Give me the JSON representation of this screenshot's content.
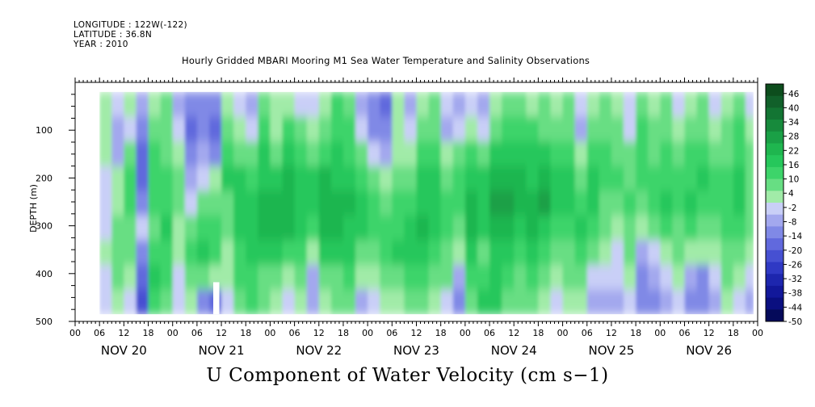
{
  "meta": {
    "longitude": "LONGITUDE : 122W(-122)",
    "latitude": "LATITUDE : 36.8N",
    "year": "YEAR : 2010"
  },
  "chart_data": {
    "type": "heatmap",
    "title": "Hourly Gridded MBARI Mooring M1 Sea Water Temperature and Salinity Observations",
    "variable_title": "U Component of Water Velocity (cm s−1)",
    "ylabel": "DEPTH (m)",
    "ylim": [
      500,
      0
    ],
    "y_inverted": true,
    "y_ticks": [
      100,
      200,
      300,
      400,
      500
    ],
    "x_range_hours": [
      0,
      168
    ],
    "x_days": [
      "NOV 20",
      "NOV 21",
      "NOV 22",
      "NOV 23",
      "NOV 24",
      "NOV 25",
      "NOV 26"
    ],
    "x_hour_labels": [
      "00",
      "06",
      "12",
      "18",
      "00",
      "06",
      "12",
      "18",
      "00",
      "06",
      "12",
      "18",
      "00",
      "06",
      "12",
      "18",
      "00",
      "06",
      "12",
      "18",
      "00",
      "06",
      "12",
      "18",
      "00",
      "06",
      "12",
      "18",
      "00"
    ],
    "data_extent": {
      "hour_start": 6,
      "hour_end": 167,
      "depth_top": 20,
      "depth_bottom": 485,
      "missing_block": {
        "hour_start": 34,
        "hour_end": 35.5,
        "depth_top": 418,
        "depth_bottom": 485
      }
    },
    "colorbar": {
      "min": -50,
      "max": 50,
      "labels": [
        "46",
        "40",
        "34",
        "28",
        "22",
        "16",
        "10",
        "4",
        "-2",
        "-8",
        "-14",
        "-20",
        "-26",
        "-32",
        "-38",
        "-44",
        "-50"
      ],
      "colors_high_to_low": [
        "#0d4d1d",
        "#11602a",
        "#137533",
        "#178a3c",
        "#1aa046",
        "#1fb64f",
        "#26c75b",
        "#3dd46a",
        "#67de83",
        "#a1eba8",
        "#c9cff7",
        "#a3a8ee",
        "#8089e6",
        "#6169dd",
        "#4650d2",
        "#2f39c4",
        "#1d26ae",
        "#12189a",
        "#0a0f80",
        "#050a5a"
      ]
    },
    "columns": [
      {
        "hour": 6,
        "v": [
          3,
          2,
          2,
          0,
          -2,
          0,
          2,
          -1,
          -3
        ]
      },
      {
        "hour": 9,
        "v": [
          -4,
          -8,
          -6,
          2,
          4,
          6,
          10,
          8,
          4
        ]
      },
      {
        "hour": 12,
        "v": [
          4,
          0,
          8,
          12,
          14,
          10,
          6,
          4,
          -2
        ]
      },
      {
        "hour": 15,
        "v": [
          -8,
          -14,
          -18,
          -16,
          -10,
          -4,
          -14,
          -16,
          -20
        ]
      },
      {
        "hour": 18,
        "v": [
          2,
          8,
          12,
          14,
          12,
          10,
          14,
          16,
          12
        ]
      },
      {
        "hour": 21,
        "v": [
          6,
          6,
          10,
          12,
          14,
          16,
          14,
          12,
          10
        ]
      },
      {
        "hour": 24,
        "v": [
          -6,
          -4,
          4,
          8,
          10,
          4,
          2,
          -2,
          -4
        ]
      },
      {
        "hour": 27,
        "v": [
          -12,
          -16,
          -12,
          -8,
          -4,
          8,
          14,
          10,
          4
        ]
      },
      {
        "hour": 30,
        "v": [
          -10,
          -14,
          -8,
          -4,
          6,
          12,
          16,
          10,
          -10
        ]
      },
      {
        "hour": 33,
        "v": [
          -14,
          -18,
          -12,
          2,
          8,
          14,
          12,
          4,
          -16
        ]
      },
      {
        "hour": 36,
        "v": [
          2,
          6,
          12,
          16,
          10,
          6,
          4,
          2,
          -4
        ]
      },
      {
        "hour": 39,
        "v": [
          -4,
          4,
          10,
          18,
          20,
          20,
          14,
          12,
          8
        ]
      },
      {
        "hour": 42,
        "v": [
          -8,
          0,
          6,
          14,
          16,
          20,
          18,
          14,
          12
        ]
      },
      {
        "hour": 45,
        "v": [
          6,
          12,
          16,
          18,
          22,
          22,
          16,
          10,
          6
        ]
      },
      {
        "hour": 48,
        "v": [
          2,
          4,
          10,
          20,
          24,
          24,
          18,
          10,
          4
        ]
      },
      {
        "hour": 51,
        "v": [
          4,
          12,
          16,
          22,
          24,
          22,
          14,
          4,
          -4
        ]
      },
      {
        "hour": 54,
        "v": [
          0,
          6,
          14,
          18,
          20,
          16,
          12,
          6,
          2
        ]
      },
      {
        "hour": 57,
        "v": [
          -4,
          2,
          10,
          16,
          20,
          14,
          4,
          -8,
          -6
        ]
      },
      {
        "hour": 60,
        "v": [
          4,
          8,
          14,
          22,
          24,
          22,
          16,
          8,
          4
        ]
      },
      {
        "hour": 63,
        "v": [
          12,
          14,
          16,
          20,
          22,
          22,
          18,
          10,
          8
        ]
      },
      {
        "hour": 66,
        "v": [
          6,
          12,
          14,
          18,
          22,
          20,
          16,
          12,
          6
        ]
      },
      {
        "hour": 69,
        "v": [
          -8,
          -4,
          8,
          14,
          18,
          16,
          10,
          2,
          -6
        ]
      },
      {
        "hour": 72,
        "v": [
          -14,
          -10,
          0,
          10,
          14,
          12,
          8,
          4,
          -4
        ]
      },
      {
        "hour": 75,
        "v": [
          -16,
          -12,
          -6,
          4,
          10,
          12,
          14,
          6,
          2
        ]
      },
      {
        "hour": 78,
        "v": [
          2,
          2,
          4,
          8,
          12,
          14,
          16,
          10,
          4
        ]
      },
      {
        "hour": 81,
        "v": [
          -6,
          -4,
          2,
          10,
          14,
          16,
          18,
          14,
          8
        ]
      },
      {
        "hour": 84,
        "v": [
          4,
          10,
          14,
          18,
          20,
          22,
          16,
          12,
          10
        ]
      },
      {
        "hour": 87,
        "v": [
          6,
          10,
          14,
          16,
          16,
          18,
          14,
          8,
          2
        ]
      },
      {
        "hour": 90,
        "v": [
          -4,
          -6,
          2,
          10,
          14,
          12,
          10,
          6,
          -2
        ]
      },
      {
        "hour": 93,
        "v": [
          -8,
          -2,
          6,
          12,
          14,
          10,
          4,
          -8,
          -12
        ]
      },
      {
        "hour": 96,
        "v": [
          -2,
          4,
          14,
          20,
          24,
          22,
          18,
          14,
          10
        ]
      },
      {
        "hour": 99,
        "v": [
          -6,
          -2,
          8,
          16,
          18,
          16,
          10,
          14,
          16
        ]
      },
      {
        "hour": 102,
        "v": [
          4,
          8,
          16,
          22,
          28,
          24,
          18,
          20,
          16
        ]
      },
      {
        "hour": 105,
        "v": [
          10,
          12,
          18,
          24,
          26,
          22,
          18,
          14,
          8
        ]
      },
      {
        "hour": 108,
        "v": [
          8,
          14,
          18,
          22,
          24,
          20,
          14,
          10,
          6
        ]
      },
      {
        "hour": 111,
        "v": [
          4,
          12,
          16,
          20,
          24,
          22,
          18,
          12,
          10
        ]
      },
      {
        "hour": 114,
        "v": [
          6,
          10,
          18,
          22,
          26,
          20,
          14,
          8,
          4
        ]
      },
      {
        "hour": 117,
        "v": [
          4,
          10,
          14,
          18,
          20,
          14,
          8,
          2,
          -4
        ]
      },
      {
        "hour": 120,
        "v": [
          8,
          10,
          14,
          16,
          18,
          12,
          10,
          6,
          4
        ]
      },
      {
        "hour": 123,
        "v": [
          -4,
          -6,
          2,
          10,
          14,
          16,
          12,
          6,
          2
        ]
      },
      {
        "hour": 126,
        "v": [
          4,
          8,
          14,
          18,
          16,
          14,
          10,
          -2,
          -6
        ]
      },
      {
        "hour": 129,
        "v": [
          6,
          10,
          12,
          14,
          10,
          6,
          4,
          -2,
          -6
        ]
      },
      {
        "hour": 132,
        "v": [
          2,
          6,
          10,
          12,
          8,
          4,
          0,
          -4,
          -8
        ]
      },
      {
        "hour": 135,
        "v": [
          -4,
          0,
          6,
          10,
          12,
          10,
          6,
          2,
          -4
        ]
      },
      {
        "hour": 138,
        "v": [
          8,
          12,
          14,
          12,
          8,
          2,
          -6,
          -10,
          -12
        ]
      },
      {
        "hour": 141,
        "v": [
          4,
          6,
          10,
          14,
          12,
          6,
          -2,
          -8,
          -10
        ]
      },
      {
        "hour": 144,
        "v": [
          6,
          8,
          12,
          14,
          16,
          12,
          4,
          0,
          -6
        ]
      },
      {
        "hour": 147,
        "v": [
          -2,
          4,
          8,
          12,
          14,
          10,
          6,
          2,
          -2
        ]
      },
      {
        "hour": 150,
        "v": [
          2,
          6,
          12,
          14,
          16,
          12,
          4,
          -8,
          -12
        ]
      },
      {
        "hour": 153,
        "v": [
          6,
          10,
          14,
          16,
          14,
          10,
          2,
          -10,
          -14
        ]
      },
      {
        "hour": 156,
        "v": [
          -2,
          4,
          8,
          12,
          14,
          10,
          4,
          -4,
          -8
        ]
      },
      {
        "hour": 159,
        "v": [
          4,
          8,
          10,
          12,
          14,
          12,
          10,
          6,
          2
        ]
      },
      {
        "hour": 162,
        "v": [
          8,
          12,
          14,
          16,
          18,
          14,
          10,
          4,
          0
        ]
      },
      {
        "hour": 165,
        "v": [
          -4,
          2,
          6,
          8,
          10,
          6,
          2,
          -4,
          -8
        ]
      }
    ]
  }
}
